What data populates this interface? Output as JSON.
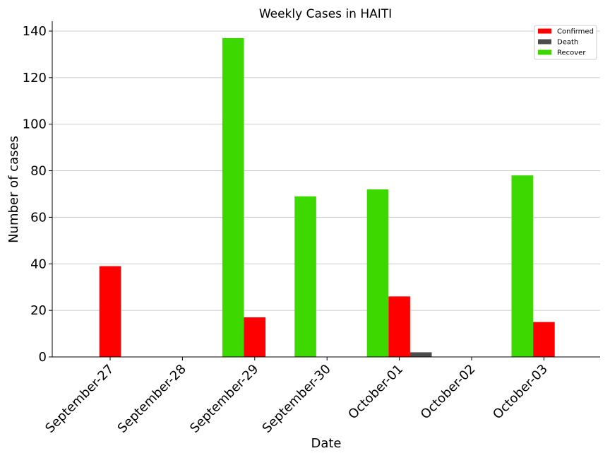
{
  "chart_data": {
    "type": "bar",
    "title": "Weekly Cases in HAITI",
    "xlabel": "Date",
    "ylabel": "Number of cases",
    "ylim": [
      0,
      140
    ],
    "yticks": [
      0,
      20,
      40,
      60,
      80,
      100,
      120,
      140
    ],
    "grid": "horizontal",
    "legend_position": "top-right",
    "categories": [
      "September-27",
      "September-28",
      "September-29",
      "September-30",
      "October-01",
      "October-02",
      "October-03"
    ],
    "series": [
      {
        "name": "Recover",
        "color": "#3dd800",
        "values": [
          0,
          0,
          137,
          69,
          72,
          0,
          78
        ]
      },
      {
        "name": "Confirmed",
        "color": "#ff0000",
        "values": [
          39,
          0,
          17,
          0,
          26,
          0,
          15
        ]
      },
      {
        "name": "Death",
        "color": "#4d4d4d",
        "values": [
          0,
          0,
          0,
          0,
          2,
          0,
          0
        ]
      }
    ],
    "legend_order": [
      "Confirmed",
      "Death",
      "Recover"
    ]
  }
}
